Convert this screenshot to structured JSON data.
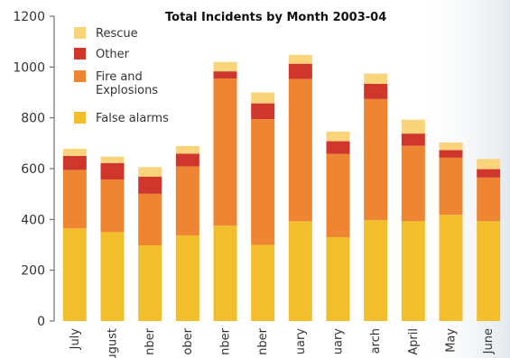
{
  "chart_data": {
    "type": "bar",
    "stacked": true,
    "title": "Total Incidents by Month 2003-04",
    "xlabel": "",
    "ylabel": "",
    "ylim": [
      0,
      1200
    ],
    "yticks": [
      0,
      200,
      400,
      600,
      800,
      1000,
      1200
    ],
    "grid": false,
    "legend": "top-left",
    "categories": [
      "July",
      "August",
      "September",
      "October",
      "November",
      "December",
      "January",
      "February",
      "March",
      "April",
      "May",
      "June"
    ],
    "category_labels_visible": [
      "July",
      "ugust",
      "nber",
      "ober",
      "nber",
      "nber",
      "uary",
      "uary",
      "arch",
      "April",
      "May",
      "June"
    ],
    "series": [
      {
        "name": "False alarms",
        "color": "#F3BE2B",
        "values": [
          365,
          350,
          298,
          337,
          375,
          300,
          393,
          330,
          397,
          393,
          418,
          393
        ]
      },
      {
        "name": "Fire and Explosions",
        "color": "#EE8533",
        "values": [
          230,
          207,
          203,
          272,
          580,
          495,
          560,
          328,
          477,
          297,
          225,
          172
        ]
      },
      {
        "name": "Other",
        "color": "#D0372C",
        "values": [
          55,
          65,
          67,
          50,
          28,
          62,
          60,
          50,
          60,
          48,
          30,
          33
        ]
      },
      {
        "name": "Rescue",
        "color": "#F9D47A",
        "values": [
          28,
          25,
          38,
          30,
          37,
          43,
          35,
          38,
          40,
          55,
          30,
          40
        ]
      }
    ]
  }
}
